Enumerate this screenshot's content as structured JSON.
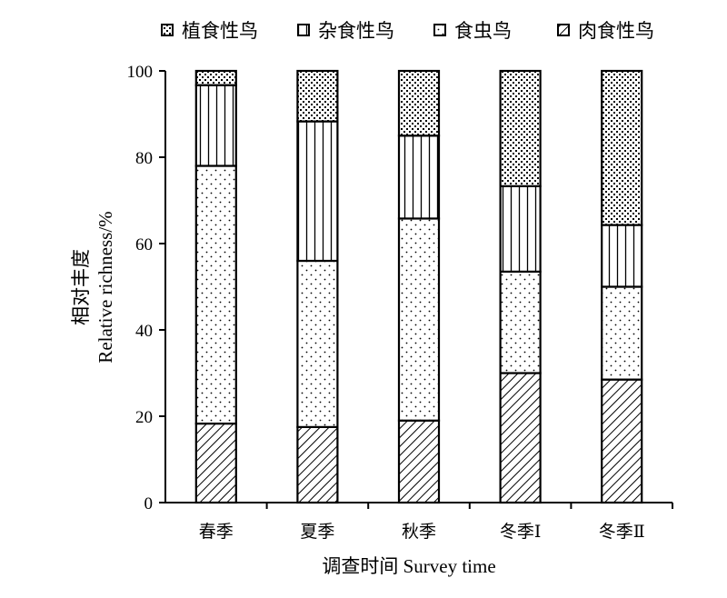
{
  "chart_data": {
    "type": "bar",
    "stacked": true,
    "categories": [
      "春季",
      "夏季",
      "秋季",
      "冬季Ⅰ",
      "冬季Ⅱ"
    ],
    "series": [
      {
        "name": "肉食性鸟",
        "pattern": "diagonal",
        "values": [
          18.3,
          17.5,
          19.0,
          30.0,
          28.5
        ]
      },
      {
        "name": "食虫鸟",
        "pattern": "dots",
        "values": [
          59.7,
          38.5,
          46.8,
          23.5,
          21.5
        ]
      },
      {
        "name": "杂食性鸟",
        "pattern": "vertical",
        "values": [
          18.7,
          32.3,
          19.2,
          19.8,
          14.3
        ]
      },
      {
        "name": "植食性鸟",
        "pattern": "crosshatch",
        "values": [
          3.3,
          11.7,
          15.0,
          26.7,
          35.7
        ]
      }
    ],
    "legend_order": [
      "植食性鸟",
      "杂食性鸟",
      "食虫鸟",
      "肉食性鸟"
    ],
    "legend_position": "top",
    "xlabel": "调查时间 Survey time",
    "ylabel_line1": "相对丰度",
    "ylabel_line2": "Relative richness/%",
    "ylim": [
      0,
      100
    ],
    "yticks": [
      0,
      20,
      40,
      60,
      80,
      100
    ],
    "grid": false,
    "colors": {
      "stroke": "#000000",
      "fill": "#ffffff"
    }
  }
}
